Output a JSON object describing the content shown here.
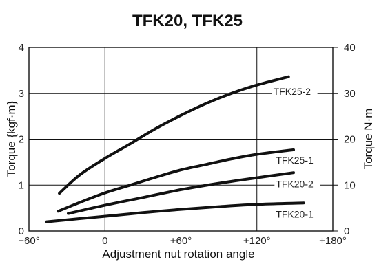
{
  "chart_data": {
    "type": "line",
    "title": "TFK20, TFK25",
    "xlabel": "Adjustment nut rotation angle",
    "ylabel": "Torque {kgf·m}",
    "y2label": "Torque N·m",
    "xlim": [
      -60,
      180
    ],
    "ylim": [
      0,
      4
    ],
    "y2lim": [
      0,
      40
    ],
    "x_ticks": [
      -60,
      0,
      60,
      120,
      180
    ],
    "x_tick_labels": [
      "−60°",
      "0",
      "+60°",
      "+120°",
      "+180°"
    ],
    "y_ticks": [
      0,
      1,
      2,
      3,
      4
    ],
    "y_tick_labels": [
      "0",
      "1",
      "2",
      "3",
      "4"
    ],
    "y2_ticks": [
      0,
      10,
      20,
      30,
      40
    ],
    "y2_tick_labels": [
      "0",
      "10",
      "20",
      "30",
      "40"
    ],
    "grid": true,
    "series": [
      {
        "name": "TFK25-2",
        "x": [
          -36,
          -20,
          0,
          20,
          40,
          60,
          80,
          100,
          120,
          145
        ],
        "y": [
          0.82,
          1.22,
          1.58,
          1.9,
          2.23,
          2.52,
          2.78,
          3.0,
          3.18,
          3.36
        ]
      },
      {
        "name": "TFK25-1",
        "x": [
          -37,
          -20,
          0,
          20,
          40,
          60,
          80,
          100,
          120,
          149
        ],
        "y": [
          0.43,
          0.62,
          0.83,
          1.0,
          1.17,
          1.33,
          1.45,
          1.57,
          1.67,
          1.77
        ]
      },
      {
        "name": "TFK20-2",
        "x": [
          -29,
          0,
          30,
          60,
          90,
          120,
          149
        ],
        "y": [
          0.38,
          0.56,
          0.73,
          0.9,
          1.04,
          1.16,
          1.27
        ]
      },
      {
        "name": "TFK20-1",
        "x": [
          -46,
          -20,
          0,
          30,
          60,
          90,
          120,
          157
        ],
        "y": [
          0.2,
          0.27,
          0.32,
          0.4,
          0.47,
          0.53,
          0.58,
          0.61
        ]
      }
    ],
    "series_label_anchors": {
      "TFK25-2": [
        133,
        2.97
      ],
      "TFK25-1": [
        135,
        1.47
      ],
      "TFK20-2": [
        135,
        0.95
      ],
      "TFK20-1": [
        135,
        0.29
      ]
    }
  }
}
